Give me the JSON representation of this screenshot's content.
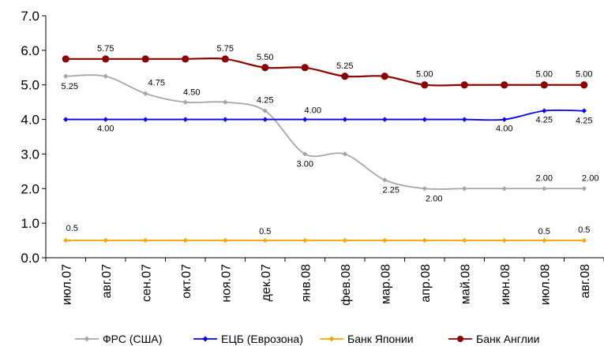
{
  "chart_data": {
    "type": "line",
    "title": "",
    "xlabel": "",
    "ylabel": "",
    "ylim": [
      0,
      7
    ],
    "yticks": [
      "0.0",
      "1.0",
      "2.0",
      "3.0",
      "4.0",
      "5.0",
      "6.0",
      "7.0"
    ],
    "grid": false,
    "legend_position": "bottom",
    "categories": [
      "июл.07",
      "авг.07",
      "сен.07",
      "окт.07",
      "ноя.07",
      "дек.07",
      "янв.08",
      "фев.08",
      "мар.08",
      "апр.08",
      "май.08",
      "июн.08",
      "июл.08",
      "авг.08"
    ],
    "series": [
      {
        "name": "ФРС (США)",
        "color": "#a6a6a6",
        "values": [
          5.25,
          5.25,
          4.75,
          4.5,
          4.5,
          4.25,
          3.0,
          3.0,
          2.25,
          2.0,
          2.0,
          2.0,
          2.0,
          2.0
        ],
        "labels": [
          "5.25",
          null,
          "4.75",
          "4.50",
          null,
          "4.25",
          "3.00",
          null,
          "2.25",
          "2.00",
          null,
          null,
          "2.00",
          "2.00"
        ]
      },
      {
        "name": "ЕЦБ (Еврозона)",
        "color": "#0000ff",
        "values": [
          4.0,
          4.0,
          4.0,
          4.0,
          4.0,
          4.0,
          4.0,
          4.0,
          4.0,
          4.0,
          4.0,
          4.0,
          4.25,
          4.25
        ],
        "labels": [
          null,
          "4.00",
          null,
          null,
          null,
          null,
          "4.00",
          null,
          null,
          null,
          null,
          "4.00",
          "4.25",
          "4.25"
        ]
      },
      {
        "name": "Банк Японии",
        "color": "#ffa500",
        "values": [
          0.5,
          0.5,
          0.5,
          0.5,
          0.5,
          0.5,
          0.5,
          0.5,
          0.5,
          0.5,
          0.5,
          0.5,
          0.5,
          0.5
        ],
        "labels": [
          "0.5",
          null,
          null,
          null,
          null,
          "0.5",
          null,
          null,
          null,
          null,
          null,
          null,
          "0.5",
          "0.5"
        ]
      },
      {
        "name": "Банк Англии",
        "color": "#8b0000",
        "values": [
          5.75,
          5.75,
          5.75,
          5.75,
          5.75,
          5.5,
          5.5,
          5.25,
          5.25,
          5.0,
          5.0,
          5.0,
          5.0,
          5.0
        ],
        "labels": [
          null,
          "5.75",
          null,
          null,
          "5.75",
          "5.50",
          null,
          "5.25",
          null,
          "5.00",
          null,
          null,
          "5.00",
          "5.00"
        ]
      }
    ]
  }
}
